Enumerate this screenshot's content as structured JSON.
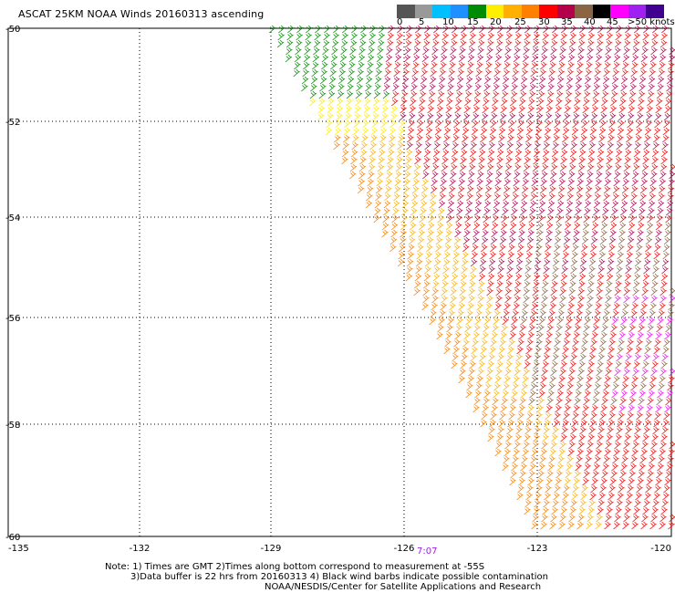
{
  "title": "ASCAT 25KM NOAA Winds 20160313 ascending",
  "legend": {
    "unit": "knots",
    "labels": [
      "0",
      "5",
      "10",
      "15",
      "20",
      "25",
      "30",
      "35",
      "40",
      "45",
      ">50 knots"
    ],
    "colors": [
      "#555555",
      "#999999",
      "#00bfff",
      "#1e90ff",
      "#008c00",
      "#ffee00",
      "#ffb000",
      "#ff7f00",
      "#ff0000",
      "#b4004a",
      "#8b6444",
      "#000000",
      "#ff00ff",
      "#a020f0",
      "#400090"
    ]
  },
  "axes": {
    "longitude_labels": [
      "-135",
      "-132",
      "-129",
      "-126",
      "-123",
      "-120"
    ],
    "latitude_labels": [
      "-50",
      "-52",
      "-54",
      "-56",
      "-58",
      "-60"
    ],
    "grid": true
  },
  "pass_time": "7:07",
  "note": {
    "line1": "Note: 1) Times are GMT 2)Times along bottom correspond to measurement at -55S",
    "line2": "3)Data buffer is 22 hrs from 20160313 4) Black wind barbs indicate possible contamination",
    "line3": "NOAA/NESDIS/Center for Satellite Applications and Research"
  }
}
